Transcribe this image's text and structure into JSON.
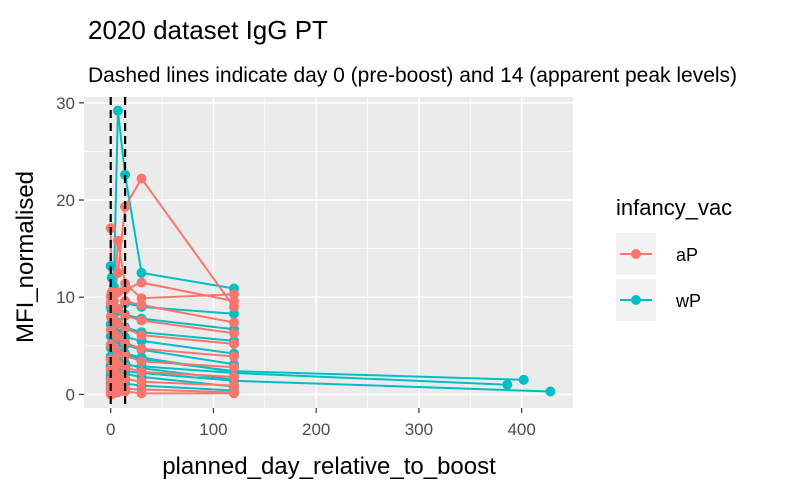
{
  "chart_data": {
    "type": "line",
    "title": "2020 dataset IgG PT",
    "subtitle": "Dashed lines indicate day 0 (pre-boost) and 14 (apparent peak levels)",
    "xlabel": "planned_day_relative_to_boost",
    "ylabel": "MFI_normalised",
    "xlim": [
      -26,
      450
    ],
    "ylim": [
      -1.4,
      30.6
    ],
    "x_ticks": [
      0,
      100,
      200,
      300,
      400
    ],
    "y_ticks": [
      0,
      10,
      20,
      30
    ],
    "vlines": [
      0,
      14
    ],
    "grid": true,
    "legend": {
      "title": "infancy_vac",
      "position": "right",
      "entries": [
        "aP",
        "wP"
      ]
    },
    "colors": {
      "aP": "#F8766D",
      "wP": "#00BFC4",
      "panel": "#EBEBEB",
      "grid": "#FFFFFF",
      "vline": "#000000"
    },
    "series": [
      {
        "group": "wP",
        "x": [
          0,
          1,
          3,
          7,
          14,
          30,
          120
        ],
        "y": [
          13.2,
          12.0,
          11.1,
          29.2,
          22.6,
          12.5,
          10.9
        ]
      },
      {
        "group": "wP",
        "x": [
          0,
          1,
          3,
          7,
          14,
          30,
          120
        ],
        "y": [
          9.0,
          8.6,
          8.2,
          8.6,
          9.4,
          9.0,
          8.3
        ]
      },
      {
        "group": "wP",
        "x": [
          0,
          1,
          3,
          7,
          14,
          30,
          120
        ],
        "y": [
          7.2,
          6.8,
          6.6,
          7.4,
          8.2,
          7.8,
          6.7
        ]
      },
      {
        "group": "wP",
        "x": [
          0,
          1,
          3,
          7,
          14,
          30,
          120
        ],
        "y": [
          6.0,
          5.9,
          5.7,
          6.3,
          6.9,
          6.4,
          5.5
        ]
      },
      {
        "group": "wP",
        "x": [
          0,
          1,
          3,
          7,
          14,
          30,
          120
        ],
        "y": [
          4.8,
          4.7,
          4.6,
          5.3,
          5.9,
          5.5,
          4.2
        ]
      },
      {
        "group": "wP",
        "x": [
          0,
          1,
          3,
          7,
          14,
          30,
          120
        ],
        "y": [
          3.9,
          3.8,
          3.7,
          4.3,
          5.1,
          4.6,
          3.1
        ]
      },
      {
        "group": "wP",
        "x": [
          0,
          1,
          3,
          7,
          14,
          30,
          120
        ],
        "y": [
          2.9,
          2.8,
          2.7,
          3.4,
          4.2,
          3.8,
          2.3
        ]
      },
      {
        "group": "wP",
        "x": [
          0,
          1,
          3,
          7,
          14,
          30,
          120
        ],
        "y": [
          2.0,
          1.9,
          1.9,
          2.5,
          3.2,
          2.7,
          1.5
        ]
      },
      {
        "group": "wP",
        "x": [
          0,
          1,
          3,
          7,
          14,
          30,
          120
        ],
        "y": [
          1.1,
          1.1,
          1.0,
          1.5,
          2.1,
          1.8,
          0.8
        ]
      },
      {
        "group": "wP",
        "x": [
          0,
          1,
          3,
          7,
          14,
          30,
          120
        ],
        "y": [
          0.5,
          0.5,
          0.5,
          0.8,
          1.1,
          0.9,
          0.4
        ]
      },
      {
        "group": "wP",
        "x": [
          0,
          3,
          7,
          14,
          30,
          120,
          386
        ],
        "y": [
          2.4,
          2.3,
          2.7,
          3.0,
          2.9,
          2.2,
          1.0
        ]
      },
      {
        "group": "wP",
        "x": [
          0,
          3,
          7,
          14,
          30,
          120,
          402
        ],
        "y": [
          3.0,
          2.9,
          3.5,
          4.0,
          3.6,
          2.4,
          1.5
        ]
      },
      {
        "group": "wP",
        "x": [
          0,
          3,
          7,
          14,
          30,
          120,
          428
        ],
        "y": [
          1.7,
          1.7,
          2.0,
          2.4,
          2.2,
          1.4,
          0.3
        ]
      },
      {
        "group": "aP",
        "x": [
          0,
          1,
          3,
          7,
          14,
          30,
          120
        ],
        "y": [
          17.1,
          10.5,
          10.2,
          12.5,
          19.3,
          22.2,
          9.0
        ]
      },
      {
        "group": "aP",
        "x": [
          0,
          1,
          3,
          7,
          14,
          30,
          120
        ],
        "y": [
          10.1,
          9.9,
          9.6,
          15.8,
          11.4,
          9.9,
          10.3
        ]
      },
      {
        "group": "aP",
        "x": [
          0,
          1,
          3,
          7,
          14,
          30,
          120
        ],
        "y": [
          9.4,
          9.2,
          9.0,
          10.5,
          10.8,
          11.5,
          9.6
        ]
      },
      {
        "group": "aP",
        "x": [
          0,
          1,
          3,
          7,
          14,
          30,
          120
        ],
        "y": [
          8.0,
          7.9,
          7.7,
          8.8,
          9.6,
          9.2,
          7.4
        ]
      },
      {
        "group": "aP",
        "x": [
          0,
          1,
          3,
          7,
          14,
          30,
          120
        ],
        "y": [
          6.6,
          6.5,
          6.3,
          7.3,
          8.1,
          7.6,
          6.3
        ]
      },
      {
        "group": "aP",
        "x": [
          0,
          1,
          3,
          7,
          14,
          30,
          120
        ],
        "y": [
          5.1,
          5.0,
          4.9,
          5.9,
          6.8,
          6.1,
          5.2
        ]
      },
      {
        "group": "aP",
        "x": [
          0,
          1,
          3,
          7,
          14,
          30,
          120
        ],
        "y": [
          3.6,
          3.5,
          3.5,
          4.2,
          5.3,
          4.7,
          3.9
        ]
      },
      {
        "group": "aP",
        "x": [
          0,
          1,
          3,
          7,
          14,
          30,
          120
        ],
        "y": [
          2.6,
          2.5,
          2.5,
          3.1,
          4.0,
          3.4,
          2.8
        ]
      },
      {
        "group": "aP",
        "x": [
          0,
          1,
          3,
          7,
          14,
          30,
          120
        ],
        "y": [
          1.5,
          1.5,
          1.4,
          2.0,
          2.8,
          2.3,
          1.8
        ]
      },
      {
        "group": "aP",
        "x": [
          0,
          1,
          3,
          7,
          14,
          30,
          120
        ],
        "y": [
          0.8,
          0.8,
          0.7,
          1.1,
          1.6,
          1.3,
          0.9
        ]
      },
      {
        "group": "aP",
        "x": [
          0,
          1,
          3,
          7,
          14,
          30,
          120
        ],
        "y": [
          0.2,
          0.2,
          0.2,
          0.4,
          0.6,
          0.5,
          0.2
        ]
      },
      {
        "group": "aP",
        "x": [
          0,
          1,
          3,
          7,
          14,
          30,
          120
        ],
        "y": [
          0.0,
          0.0,
          0.1,
          0.2,
          0.3,
          0.1,
          0.1
        ]
      }
    ]
  }
}
